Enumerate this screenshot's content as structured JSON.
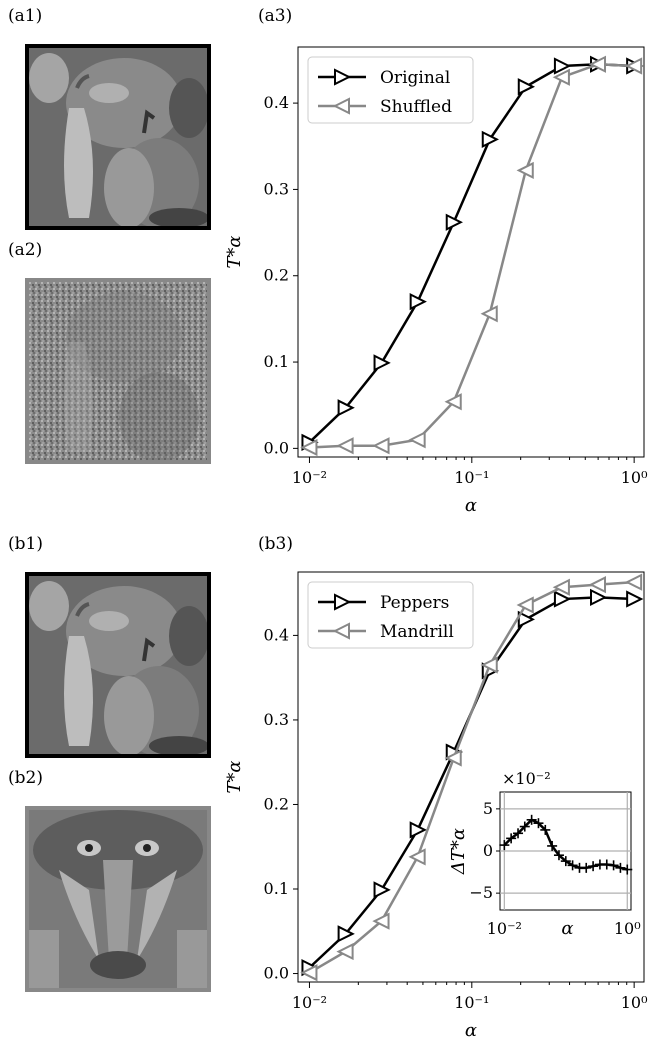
{
  "panels": {
    "a1": "(a1)",
    "a2": "(a2)",
    "a3": "(a3)",
    "b1": "(b1)",
    "b2": "(b2)",
    "b3": "(b3)"
  },
  "images": {
    "a1": {
      "subject": "peppers",
      "frame_color": "#000000"
    },
    "a2": {
      "subject": "shuffled peppers noise",
      "frame_color": "#888888"
    },
    "b1": {
      "subject": "peppers",
      "frame_color": "#000000"
    },
    "b2": {
      "subject": "mandrill",
      "frame_color": "#888888"
    }
  },
  "chart_data": [
    {
      "type": "line",
      "title": "",
      "xlabel": "α",
      "ylabel": "T*α",
      "xscale": "log",
      "xlim": [
        0.0085,
        1.15
      ],
      "ylim": [
        -0.01,
        0.465
      ],
      "xticks": [
        0.01,
        0.1,
        1
      ],
      "xtick_labels": [
        "10⁻²",
        "10⁻¹",
        "10⁰"
      ],
      "yticks": [
        0.0,
        0.1,
        0.2,
        0.3,
        0.4
      ],
      "ytick_labels": [
        "0.0",
        "0.1",
        "0.2",
        "0.3",
        "0.4"
      ],
      "grid": false,
      "legend": "top-left",
      "x": [
        0.01,
        0.0167,
        0.0278,
        0.0464,
        0.0774,
        0.129,
        0.215,
        0.359,
        0.599,
        1.0
      ],
      "series": [
        {
          "name": "Original",
          "color": "#000000",
          "marker": "triangle-right",
          "values": [
            0.007,
            0.047,
            0.099,
            0.17,
            0.262,
            0.358,
            0.419,
            0.443,
            0.445,
            0.443
          ]
        },
        {
          "name": "Shuffled",
          "color": "#888888",
          "marker": "triangle-left",
          "values": [
            0.001,
            0.003,
            0.003,
            0.01,
            0.054,
            0.156,
            0.322,
            0.43,
            0.445,
            0.443
          ]
        }
      ]
    },
    {
      "type": "line",
      "title": "",
      "xlabel": "α",
      "ylabel": "T*α",
      "xscale": "log",
      "xlim": [
        0.0085,
        1.15
      ],
      "ylim": [
        -0.01,
        0.475
      ],
      "xticks": [
        0.01,
        0.1,
        1
      ],
      "xtick_labels": [
        "10⁻²",
        "10⁻¹",
        "10⁰"
      ],
      "yticks": [
        0.0,
        0.1,
        0.2,
        0.3,
        0.4
      ],
      "ytick_labels": [
        "0.0",
        "0.1",
        "0.2",
        "0.3",
        "0.4"
      ],
      "grid": false,
      "legend": "top-left",
      "x": [
        0.01,
        0.0167,
        0.0278,
        0.0464,
        0.0774,
        0.129,
        0.215,
        0.359,
        0.599,
        1.0
      ],
      "series": [
        {
          "name": "Peppers",
          "color": "#000000",
          "marker": "triangle-right",
          "values": [
            0.007,
            0.047,
            0.099,
            0.17,
            0.262,
            0.358,
            0.419,
            0.443,
            0.445,
            0.443
          ]
        },
        {
          "name": "Mandrill",
          "color": "#888888",
          "marker": "triangle-left",
          "values": [
            0.001,
            0.026,
            0.062,
            0.138,
            0.255,
            0.365,
            0.436,
            0.457,
            0.46,
            0.463
          ]
        }
      ],
      "inset": {
        "type": "line",
        "xlabel": "α",
        "ylabel": "ΔT*α",
        "multiplier": "×10⁻²",
        "xscale": "log",
        "xlim": [
          0.0085,
          1.15
        ],
        "ylim": [
          -7,
          7
        ],
        "yticks": [
          -5,
          0,
          5
        ],
        "ytick_labels": [
          "−5",
          "0",
          "5"
        ],
        "xtick_labels": [
          "10⁻²",
          "10⁰"
        ],
        "grid": true,
        "x": [
          0.01,
          0.0129,
          0.0167,
          0.0215,
          0.0278,
          0.0359,
          0.0464,
          0.0599,
          0.0774,
          0.1,
          0.129,
          0.167,
          0.215,
          0.278,
          0.359,
          0.464,
          0.599,
          0.774,
          1.0
        ],
        "values": [
          0.7,
          1.5,
          2.1,
          2.9,
          3.7,
          3.3,
          2.5,
          0.6,
          -0.5,
          -1.2,
          -1.7,
          -2.0,
          -2.0,
          -1.8,
          -1.6,
          -1.6,
          -1.7,
          -2.0,
          -2.2
        ]
      }
    }
  ]
}
